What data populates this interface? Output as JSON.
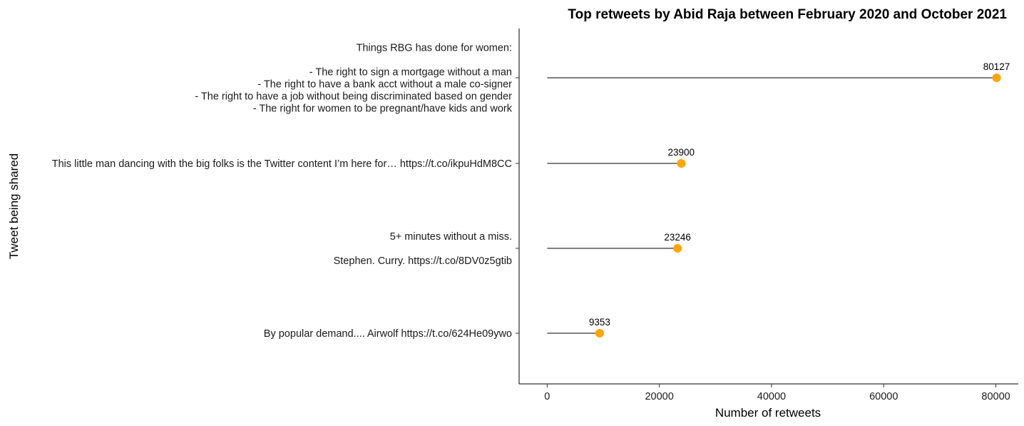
{
  "chart_data": {
    "type": "lollipop",
    "title": "Top retweets by Abid Raja between February 2020 and October 2021",
    "xlabel": "Number of retweets",
    "ylabel": "Tweet being shared",
    "xlim": [
      -5000,
      84000
    ],
    "x_ticks": [
      0,
      20000,
      40000,
      60000,
      80000
    ],
    "x_tick_labels": [
      "0",
      "20000",
      "40000",
      "60000",
      "80000"
    ],
    "grid": false,
    "point_color": "#FFA500",
    "segment_color": "#000000",
    "items": [
      {
        "label_lines": [
          "Things RBG has done for women:",
          "",
          "- The right to sign a mortgage without a man",
          "- The right to have a bank acct without a male co-signer",
          "- The right to have a job without being discriminated based on gender",
          "- The right for women to be pregnant/have kids and work"
        ],
        "value": 80127,
        "value_label": "80127"
      },
      {
        "label_lines": [
          "This little man dancing with the big folks is the Twitter content I’m here for… https://t.co/ikpuHdM8CC"
        ],
        "value": 23900,
        "value_label": "23900"
      },
      {
        "label_lines": [
          "5+ minutes without a miss.",
          "",
          "Stephen. Curry. https://t.co/8DV0z5gtib"
        ],
        "value": 23246,
        "value_label": "23246"
      },
      {
        "label_lines": [
          "By popular demand.... Airwolf https://t.co/624He09ywo"
        ],
        "value": 9353,
        "value_label": "9353"
      }
    ]
  }
}
